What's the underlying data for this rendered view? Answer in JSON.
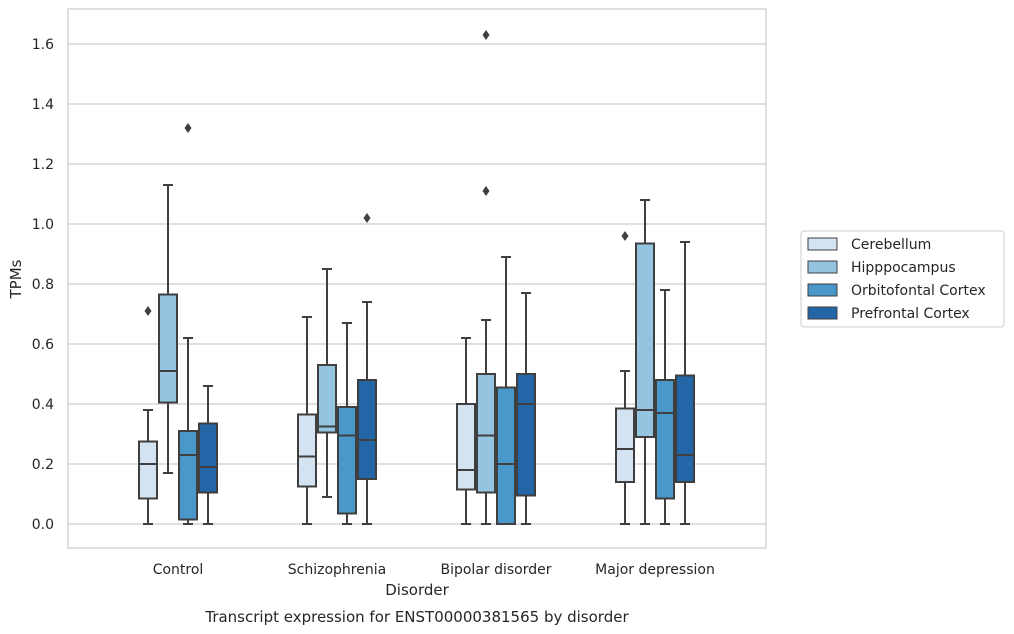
{
  "chart_data": {
    "type": "boxplot",
    "title": "",
    "caption": "Transcript expression for ENST00000381565 by disorder",
    "xlabel": "Disorder",
    "ylabel": "TPMs",
    "ylim": [
      -0.08,
      1.72
    ],
    "yticks": [
      0.0,
      0.2,
      0.4,
      0.6,
      0.8,
      1.0,
      1.2,
      1.4,
      1.6
    ],
    "ytick_labels": [
      "0.0",
      "0.2",
      "0.4",
      "0.6",
      "0.8",
      "1.0",
      "1.2",
      "1.4",
      "1.6"
    ],
    "grid": "horizontal",
    "legend_position": "right",
    "categories": [
      "Control",
      "Schizophrenia",
      "Bipolar disorder",
      "Major depression"
    ],
    "series": [
      {
        "name": "Cerebellum",
        "color": "#d4e3f1",
        "boxes": [
          {
            "whislo": 0.0,
            "q1": 0.085,
            "med": 0.2,
            "q3": 0.275,
            "whishi": 0.38,
            "fliers": [
              0.71
            ]
          },
          {
            "whislo": 0.0,
            "q1": 0.125,
            "med": 0.225,
            "q3": 0.365,
            "whishi": 0.69,
            "fliers": []
          },
          {
            "whislo": 0.0,
            "q1": 0.115,
            "med": 0.18,
            "q3": 0.4,
            "whishi": 0.62,
            "fliers": []
          },
          {
            "whislo": 0.0,
            "q1": 0.14,
            "med": 0.25,
            "q3": 0.385,
            "whishi": 0.51,
            "fliers": [
              0.96
            ]
          }
        ]
      },
      {
        "name": "Hipppocampus",
        "color": "#94c4df",
        "boxes": [
          {
            "whislo": 0.17,
            "q1": 0.405,
            "med": 0.51,
            "q3": 0.765,
            "whishi": 1.13,
            "fliers": []
          },
          {
            "whislo": 0.09,
            "q1": 0.305,
            "med": 0.325,
            "q3": 0.53,
            "whishi": 0.85,
            "fliers": []
          },
          {
            "whislo": 0.0,
            "q1": 0.105,
            "med": 0.295,
            "q3": 0.5,
            "whishi": 0.68,
            "fliers": [
              1.11,
              1.63
            ]
          },
          {
            "whislo": 0.0,
            "q1": 0.29,
            "med": 0.38,
            "q3": 0.935,
            "whishi": 1.08,
            "fliers": []
          }
        ]
      },
      {
        "name": "Orbitofontal Cortex",
        "color": "#4a98c9",
        "boxes": [
          {
            "whislo": 0.0,
            "q1": 0.015,
            "med": 0.23,
            "q3": 0.31,
            "whishi": 0.62,
            "fliers": [
              1.32
            ]
          },
          {
            "whislo": 0.0,
            "q1": 0.035,
            "med": 0.295,
            "q3": 0.39,
            "whishi": 0.67,
            "fliers": []
          },
          {
            "whislo": 0.0,
            "q1": 0.0,
            "med": 0.2,
            "q3": 0.455,
            "whishi": 0.89,
            "fliers": []
          },
          {
            "whislo": 0.0,
            "q1": 0.085,
            "med": 0.37,
            "q3": 0.48,
            "whishi": 0.78,
            "fliers": []
          }
        ]
      },
      {
        "name": "Prefrontal Cortex",
        "color": "#2366a8",
        "boxes": [
          {
            "whislo": 0.0,
            "q1": 0.105,
            "med": 0.19,
            "q3": 0.335,
            "whishi": 0.46,
            "fliers": []
          },
          {
            "whislo": 0.0,
            "q1": 0.15,
            "med": 0.28,
            "q3": 0.48,
            "whishi": 0.74,
            "fliers": [
              1.02
            ]
          },
          {
            "whislo": 0.0,
            "q1": 0.095,
            "med": 0.4,
            "q3": 0.5,
            "whishi": 0.77,
            "fliers": []
          },
          {
            "whislo": 0.0,
            "q1": 0.14,
            "med": 0.23,
            "q3": 0.495,
            "whishi": 0.94,
            "fliers": []
          }
        ]
      }
    ]
  }
}
